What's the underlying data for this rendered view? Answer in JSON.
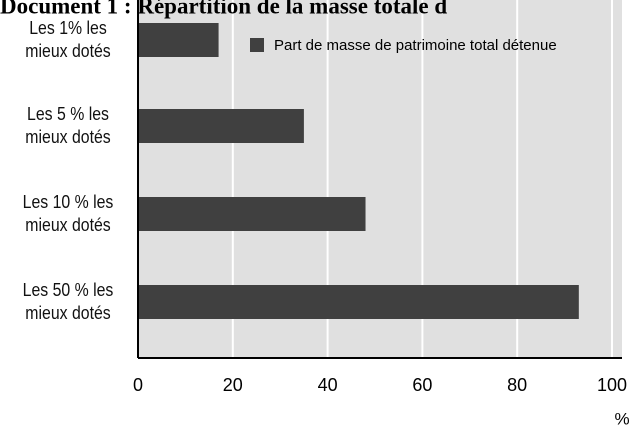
{
  "chart_data": {
    "type": "hbar",
    "title": "Document 1 : Répartition de la masse totale d",
    "categories": [
      "Les 1% les\nmieux dotés",
      "Les 5 % les\nmieux dotés",
      "Les 10 % les\nmieux dotés",
      "Les 50 % les\nmieux dotés"
    ],
    "series": [
      {
        "name": "Part de masse de patrimoine total détenue",
        "color": "#404040",
        "values": [
          17,
          35,
          48,
          93
        ]
      }
    ],
    "xlim": [
      0,
      100
    ],
    "xticks": [
      0,
      20,
      40,
      60,
      80,
      100
    ],
    "xlabel": "%",
    "grid": true
  }
}
